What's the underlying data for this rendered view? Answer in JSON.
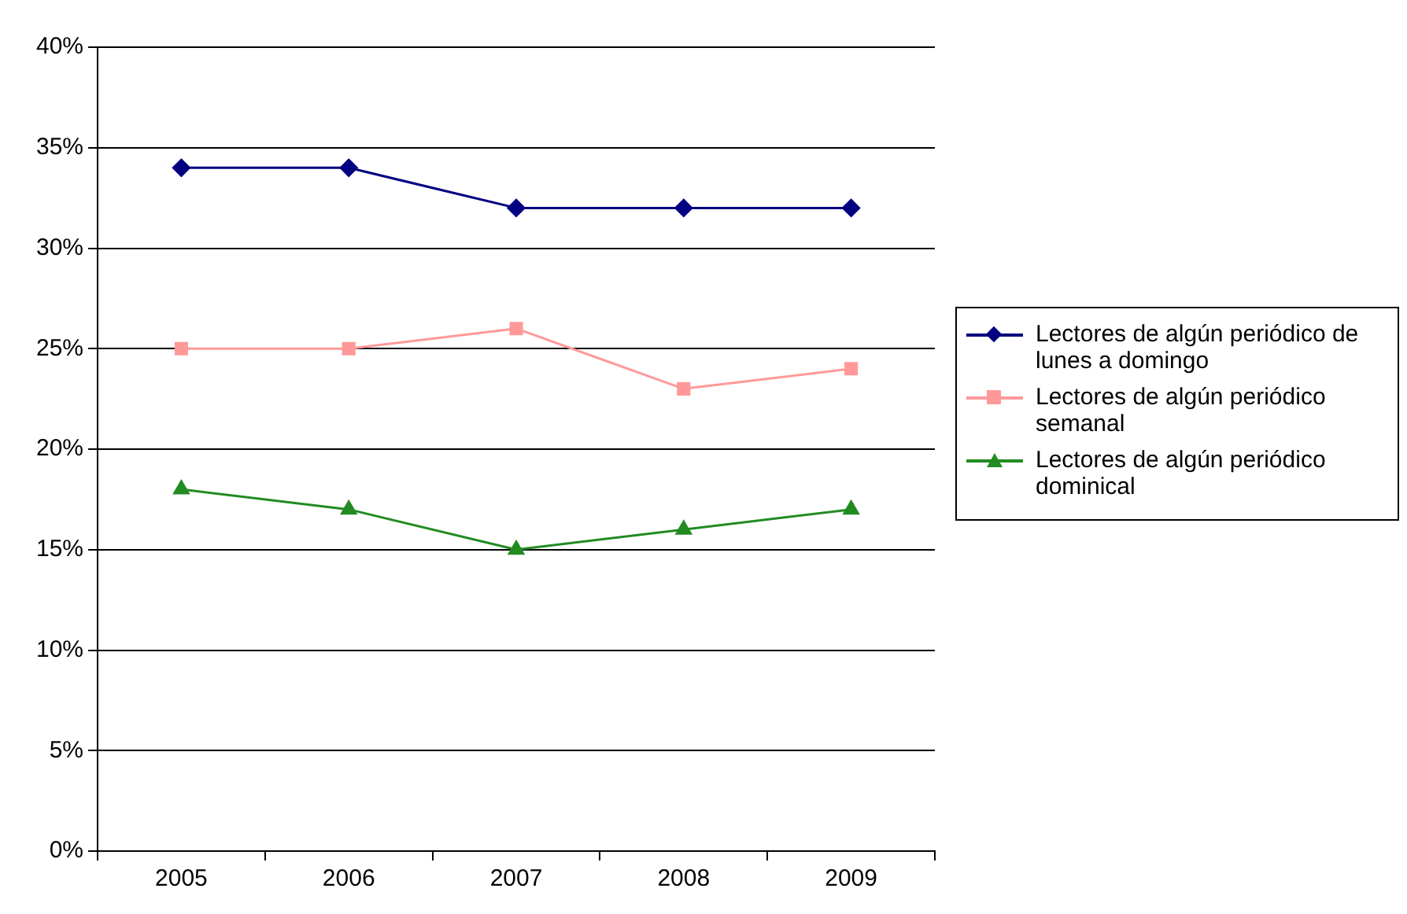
{
  "chart_data": {
    "type": "line",
    "categories": [
      "2005",
      "2006",
      "2007",
      "2008",
      "2009"
    ],
    "series": [
      {
        "name": "Lectores de algún periódico de lunes a domingo",
        "color": "#000080",
        "marker": "diamond",
        "values": [
          34,
          34,
          32,
          32,
          32
        ]
      },
      {
        "name": "Lectores de algún periódico semanal",
        "color": "#ff9999",
        "marker": "square",
        "values": [
          25,
          25,
          26,
          23,
          24
        ]
      },
      {
        "name": "Lectores de algún periódico dominical",
        "color": "#228b22",
        "marker": "triangle",
        "values": [
          18,
          17,
          15,
          16,
          17
        ]
      }
    ],
    "ylim": [
      0,
      40
    ],
    "yticks": [
      {
        "value": 0,
        "label": "0%"
      },
      {
        "value": 5,
        "label": "5%"
      },
      {
        "value": 10,
        "label": "10%"
      },
      {
        "value": 15,
        "label": "15%"
      },
      {
        "value": 20,
        "label": "20%"
      },
      {
        "value": 25,
        "label": "25%"
      },
      {
        "value": 30,
        "label": "30%"
      },
      {
        "value": 35,
        "label": "35%"
      },
      {
        "value": 40,
        "label": "40%"
      }
    ],
    "grid": "y",
    "legend": "right",
    "line_style": "solid"
  }
}
